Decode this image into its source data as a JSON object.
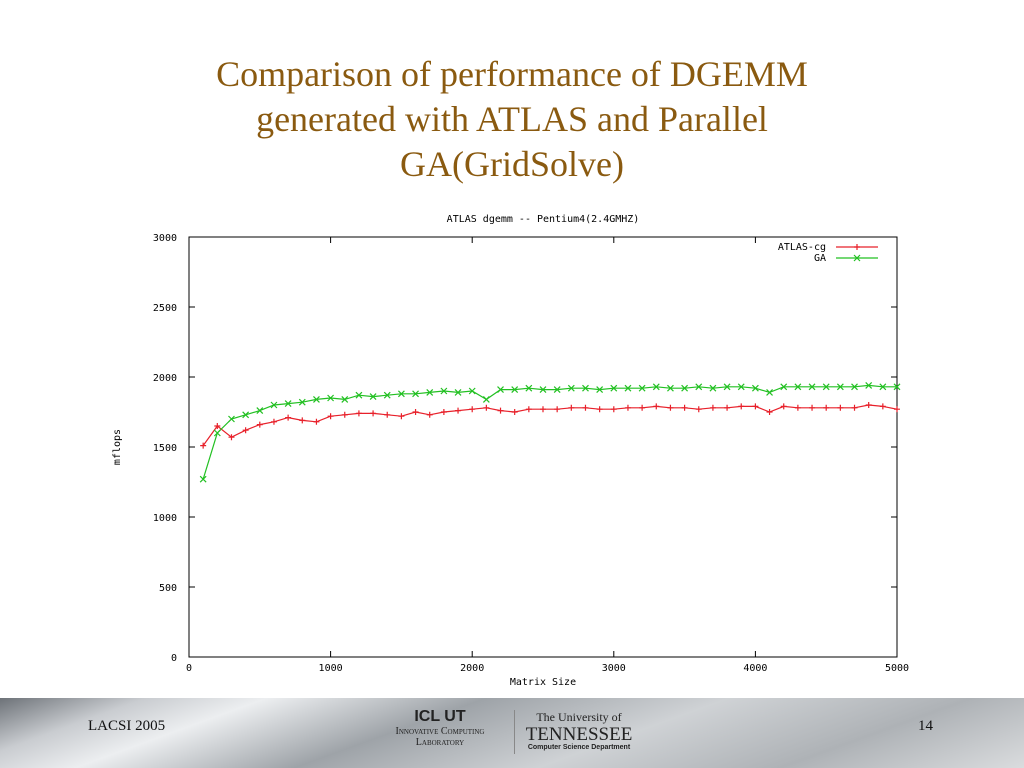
{
  "slide": {
    "title_lines": [
      "Comparison of performance of DGEMM",
      "generated with ATLAS and Parallel",
      "GA(GridSolve)"
    ],
    "footer_left": "LACSI 2005",
    "page_number": "14",
    "logos": {
      "icl": "ICL UT",
      "icl_sub1": "Innovative Computing",
      "icl_sub2": "Laboratory",
      "ut_top": "The University of",
      "ut_name": "Tennessee",
      "ut_dept": "Computer Science Department"
    }
  },
  "chart_data": {
    "type": "line",
    "title": "ATLAS dgemm -- Pentium4(2.4GMHZ)",
    "xlabel": "Matrix Size",
    "ylabel": "mflops",
    "xlim": [
      0,
      5000
    ],
    "ylim": [
      0,
      3000
    ],
    "xticks": [
      0,
      1000,
      2000,
      3000,
      4000,
      5000
    ],
    "yticks": [
      0,
      500,
      1000,
      1500,
      2000,
      2500,
      3000
    ],
    "legend_position": "top-right",
    "x": [
      100,
      200,
      300,
      400,
      500,
      600,
      700,
      800,
      900,
      1000,
      1100,
      1200,
      1300,
      1400,
      1500,
      1600,
      1700,
      1800,
      1900,
      2000,
      2100,
      2200,
      2300,
      2400,
      2500,
      2600,
      2700,
      2800,
      2900,
      3000,
      3100,
      3200,
      3300,
      3400,
      3500,
      3600,
      3700,
      3800,
      3900,
      4000,
      4100,
      4200,
      4300,
      4400,
      4500,
      4600,
      4700,
      4800,
      4900,
      5000
    ],
    "series": [
      {
        "name": "ATLAS-cg",
        "color": "#e8202a",
        "marker": "+",
        "values": [
          1510,
          1650,
          1570,
          1620,
          1660,
          1680,
          1710,
          1690,
          1680,
          1720,
          1730,
          1740,
          1740,
          1730,
          1720,
          1750,
          1730,
          1750,
          1760,
          1770,
          1780,
          1760,
          1750,
          1770,
          1770,
          1770,
          1780,
          1780,
          1770,
          1770,
          1780,
          1780,
          1790,
          1780,
          1780,
          1770,
          1780,
          1780,
          1790,
          1790,
          1750,
          1790,
          1780,
          1780,
          1780,
          1780,
          1780,
          1800,
          1790,
          1770
        ]
      },
      {
        "name": "GA",
        "color": "#22c022",
        "marker": "x",
        "values": [
          1270,
          1600,
          1700,
          1730,
          1760,
          1800,
          1810,
          1820,
          1840,
          1850,
          1840,
          1870,
          1860,
          1870,
          1880,
          1880,
          1890,
          1900,
          1890,
          1900,
          1840,
          1910,
          1910,
          1920,
          1910,
          1910,
          1920,
          1920,
          1910,
          1920,
          1920,
          1920,
          1930,
          1920,
          1920,
          1930,
          1920,
          1930,
          1930,
          1920,
          1890,
          1930,
          1930,
          1930,
          1930,
          1930,
          1930,
          1940,
          1930,
          1930
        ]
      }
    ]
  }
}
